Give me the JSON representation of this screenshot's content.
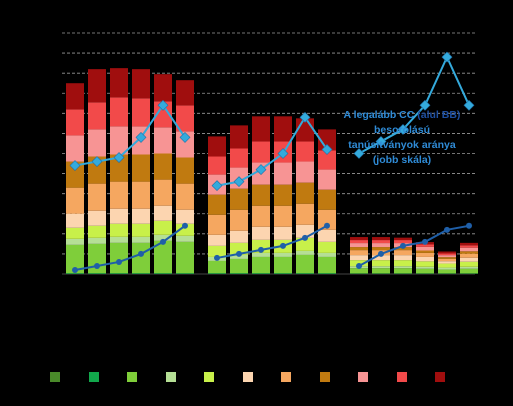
{
  "chart_data": {
    "type": "bar",
    "stacked": true,
    "grid": true,
    "left_axis": {
      "min": 0,
      "max": 12,
      "step": 1
    },
    "right_axis": {
      "min": 0,
      "max": 0.6
    },
    "groups": [
      {
        "n": 6,
        "categories": [
          "",
          "",
          "",
          "",
          "",
          ""
        ]
      },
      {
        "n": 6,
        "categories": [
          "",
          "",
          "",
          "",
          "",
          ""
        ]
      },
      {
        "n": 6,
        "categories": [
          "",
          "",
          "",
          "",
          "",
          ""
        ]
      }
    ],
    "series": [
      {
        "color": "#4a8a2a",
        "values": [
          0.02,
          0.02,
          0.02,
          0.02,
          0.02,
          0.02,
          0.02,
          0.02,
          0.02,
          0.02,
          0.02,
          0.02,
          0.02,
          0.02,
          0.02,
          0.02,
          0.02,
          0.02
        ]
      },
      {
        "color": "#12a84c",
        "values": [
          0.03,
          0.03,
          0.03,
          0.03,
          0.03,
          0.03,
          0.03,
          0.03,
          0.03,
          0.03,
          0.03,
          0.03,
          0.02,
          0.02,
          0.02,
          0.02,
          0.02,
          0.02
        ]
      },
      {
        "color": "#7fce3a",
        "values": [
          1.4,
          1.45,
          1.5,
          1.5,
          1.6,
          1.55,
          0.6,
          0.7,
          0.8,
          0.8,
          0.9,
          0.8,
          0.25,
          0.25,
          0.25,
          0.22,
          0.18,
          0.22
        ]
      },
      {
        "color": "#b5df95",
        "values": [
          0.3,
          0.3,
          0.3,
          0.3,
          0.3,
          0.3,
          0.2,
          0.2,
          0.2,
          0.2,
          0.2,
          0.2,
          0.1,
          0.1,
          0.1,
          0.1,
          0.1,
          0.1
        ]
      },
      {
        "color": "#c8f04a",
        "values": [
          0.55,
          0.6,
          0.65,
          0.65,
          0.7,
          0.6,
          0.55,
          0.6,
          0.65,
          0.65,
          0.65,
          0.55,
          0.3,
          0.3,
          0.3,
          0.27,
          0.2,
          0.25
        ]
      },
      {
        "color": "#fcd5b0",
        "values": [
          0.7,
          0.75,
          0.75,
          0.75,
          0.75,
          0.7,
          0.55,
          0.6,
          0.65,
          0.65,
          0.65,
          0.6,
          0.25,
          0.25,
          0.25,
          0.22,
          0.12,
          0.2
        ]
      },
      {
        "color": "#f5a760",
        "values": [
          1.3,
          1.35,
          1.35,
          1.35,
          1.3,
          1.3,
          1.0,
          1.05,
          1.05,
          1.05,
          1.05,
          1.0,
          0.25,
          0.25,
          0.25,
          0.2,
          0.12,
          0.2
        ]
      },
      {
        "color": "#c07a10",
        "values": [
          1.3,
          1.35,
          1.35,
          1.35,
          1.3,
          1.3,
          1.0,
          1.05,
          1.05,
          1.05,
          1.05,
          1.0,
          0.15,
          0.15,
          0.15,
          0.12,
          0.08,
          0.12
        ]
      },
      {
        "color": "#f79494",
        "values": [
          1.3,
          1.35,
          1.4,
          1.4,
          1.3,
          1.3,
          1.0,
          1.05,
          1.1,
          1.1,
          1.05,
          1.0,
          0.2,
          0.2,
          0.2,
          0.18,
          0.1,
          0.18
        ]
      },
      {
        "color": "#f24a4a",
        "values": [
          1.3,
          1.35,
          1.45,
          1.4,
          1.3,
          1.3,
          0.9,
          0.95,
          1.05,
          1.05,
          1.0,
          0.95,
          0.15,
          0.15,
          0.15,
          0.12,
          0.08,
          0.12
        ]
      },
      {
        "color": "#a00e0e",
        "values": [
          1.3,
          1.65,
          1.45,
          1.45,
          1.35,
          1.25,
          1.0,
          1.15,
          1.25,
          1.25,
          1.15,
          1.05,
          0.15,
          0.15,
          0.12,
          0.12,
          0.1,
          0.12
        ]
      }
    ],
    "line_series": [
      {
        "color": "#34aadc",
        "marker": "diamond",
        "values": [
          0.27,
          0.28,
          0.29,
          0.34,
          0.42,
          0.34,
          0.22,
          0.23,
          0.26,
          0.3,
          0.39,
          0.31,
          0.3,
          0.33,
          0.36,
          0.42,
          0.54,
          0.42
        ]
      },
      {
        "color": "#1f5fa8",
        "marker": "circle",
        "values": [
          0.01,
          0.02,
          0.03,
          0.05,
          0.08,
          0.12,
          0.04,
          0.05,
          0.06,
          0.07,
          0.09,
          0.12,
          0.02,
          0.05,
          0.07,
          0.08,
          0.11,
          0.12
        ]
      }
    ]
  },
  "annotation": {
    "part1": "A legalább CC ",
    "part2": "(alul BB)",
    "part3": " besorolású tanúsítványok aránya (jobb skála)"
  },
  "legend": {
    "colors": [
      "#4a8a2a",
      "#12a84c",
      "#7fce3a",
      "#b5df95",
      "#c8f04a",
      "#fcd5b0",
      "#f5a760",
      "#c07a10",
      "#f79494",
      "#f24a4a",
      "#a00e0e"
    ]
  }
}
